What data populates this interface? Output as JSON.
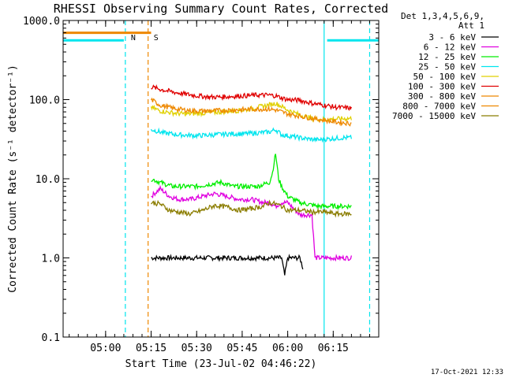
{
  "chart_data": {
    "type": "line",
    "title": "RHESSI Observing Summary Count Rates, Corrected",
    "xlabel": "Start Time (23-Jul-02 04:46:22)",
    "ylabel": "Corrected Count Rate (s⁻¹ detector⁻¹)",
    "yscale": "log",
    "ylim": [
      0.1,
      1000
    ],
    "xlim_minutes": [
      0,
      104
    ],
    "x_ticks": [
      {
        "minute": 14,
        "label": "05:00"
      },
      {
        "minute": 29,
        "label": "05:15"
      },
      {
        "minute": 44,
        "label": "05:30"
      },
      {
        "minute": 59,
        "label": "05:45"
      },
      {
        "minute": 74,
        "label": "06:00"
      },
      {
        "minute": 89,
        "label": "06:15"
      }
    ],
    "y_ticks": [
      {
        "value": 1000,
        "label": "1000.0"
      },
      {
        "value": 100,
        "label": "100.0"
      },
      {
        "value": 10,
        "label": "10.0"
      },
      {
        "value": 1,
        "label": "1.0"
      },
      {
        "value": 0.1,
        "label": "0.1"
      }
    ],
    "legend_header": [
      "Det 1,3,4,5,6,9,",
      "Att 1"
    ],
    "legend_position": "top-right, outside plot",
    "series": [
      {
        "name": "3 - 6 keV",
        "color": "#000000",
        "points": [
          [
            29,
            1
          ],
          [
            36,
            1
          ],
          [
            42,
            1
          ],
          [
            48,
            1
          ],
          [
            54,
            1
          ],
          [
            60,
            1
          ],
          [
            66,
            1
          ],
          [
            70,
            1
          ],
          [
            72,
            1
          ],
          [
            73,
            0.6
          ],
          [
            74,
            1
          ],
          [
            76,
            1
          ],
          [
            78,
            1
          ],
          [
            79,
            0.75
          ]
        ]
      },
      {
        "name": "6 - 12 keV",
        "color": "#e000e0",
        "points": [
          [
            29,
            6
          ],
          [
            32,
            7.5
          ],
          [
            35,
            6
          ],
          [
            38,
            5.5
          ],
          [
            42,
            5.5
          ],
          [
            46,
            6
          ],
          [
            50,
            6.5
          ],
          [
            54,
            6
          ],
          [
            58,
            5.5
          ],
          [
            62,
            5.5
          ],
          [
            66,
            5
          ],
          [
            68,
            5
          ],
          [
            70,
            4.5
          ],
          [
            72,
            5
          ],
          [
            74,
            5
          ],
          [
            78,
            3.5
          ],
          [
            82,
            3.5
          ],
          [
            83,
            1
          ],
          [
            95,
            1
          ]
        ]
      },
      {
        "name": "12 - 25 keV",
        "color": "#00ee00",
        "points": [
          [
            29,
            10
          ],
          [
            32,
            9
          ],
          [
            36,
            8
          ],
          [
            40,
            8
          ],
          [
            44,
            8
          ],
          [
            48,
            8.5
          ],
          [
            52,
            9
          ],
          [
            56,
            8
          ],
          [
            60,
            8
          ],
          [
            64,
            8
          ],
          [
            66,
            8.5
          ],
          [
            68,
            9
          ],
          [
            69,
            12
          ],
          [
            70,
            21
          ],
          [
            71,
            10
          ],
          [
            72,
            8
          ],
          [
            74,
            6
          ],
          [
            78,
            5
          ],
          [
            84,
            4.5
          ],
          [
            90,
            4.5
          ],
          [
            95,
            4.5
          ]
        ]
      },
      {
        "name": "25 - 50 keV",
        "color": "#00e5ee",
        "points": [
          [
            29,
            42
          ],
          [
            33,
            38
          ],
          [
            38,
            36
          ],
          [
            44,
            35
          ],
          [
            50,
            36
          ],
          [
            55,
            37
          ],
          [
            60,
            37
          ],
          [
            64,
            38
          ],
          [
            68,
            39
          ],
          [
            70,
            42
          ],
          [
            72,
            36
          ],
          [
            76,
            34
          ],
          [
            80,
            32
          ],
          [
            84,
            31
          ],
          [
            88,
            32
          ],
          [
            92,
            33
          ],
          [
            95,
            33
          ]
        ]
      },
      {
        "name": "50 - 100 keV",
        "color": "#e0d000",
        "points": [
          [
            29,
            80
          ],
          [
            32,
            72
          ],
          [
            36,
            68
          ],
          [
            40,
            66
          ],
          [
            44,
            67
          ],
          [
            48,
            68
          ],
          [
            52,
            70
          ],
          [
            56,
            72
          ],
          [
            60,
            74
          ],
          [
            64,
            80
          ],
          [
            68,
            86
          ],
          [
            70,
            90
          ],
          [
            72,
            82
          ],
          [
            74,
            74
          ],
          [
            78,
            64
          ],
          [
            82,
            58
          ],
          [
            86,
            56
          ],
          [
            90,
            57
          ],
          [
            95,
            58
          ]
        ]
      },
      {
        "name": "100 - 300 keV",
        "color": "#e00000",
        "points": [
          [
            29,
            145
          ],
          [
            32,
            135
          ],
          [
            36,
            125
          ],
          [
            40,
            118
          ],
          [
            44,
            112
          ],
          [
            48,
            108
          ],
          [
            52,
            108
          ],
          [
            56,
            110
          ],
          [
            60,
            112
          ],
          [
            64,
            114
          ],
          [
            68,
            114
          ],
          [
            70,
            112
          ],
          [
            72,
            105
          ],
          [
            74,
            100
          ],
          [
            78,
            98
          ],
          [
            82,
            90
          ],
          [
            86,
            85
          ],
          [
            90,
            80
          ],
          [
            95,
            78
          ]
        ]
      },
      {
        "name": "300 - 800 keV",
        "color": "#ee8800",
        "points": [
          [
            29,
            100
          ],
          [
            32,
            85
          ],
          [
            36,
            78
          ],
          [
            40,
            74
          ],
          [
            44,
            72
          ],
          [
            48,
            72
          ],
          [
            52,
            73
          ],
          [
            56,
            74
          ],
          [
            60,
            75
          ],
          [
            64,
            76
          ],
          [
            68,
            76
          ],
          [
            70,
            74
          ],
          [
            72,
            70
          ],
          [
            74,
            66
          ],
          [
            78,
            62
          ],
          [
            82,
            58
          ],
          [
            86,
            55
          ],
          [
            90,
            52
          ],
          [
            95,
            50
          ]
        ]
      },
      {
        "name": "800 - 7000 keV",
        "color": "#ee8800",
        "points": [
          [
            0,
            700
          ],
          [
            29,
            700
          ]
        ]
      },
      {
        "name": "7000 - 15000 keV",
        "color": "#8b7d00",
        "points": [
          [
            29,
            5
          ],
          [
            32,
            4.8
          ],
          [
            35,
            4
          ],
          [
            38,
            3.8
          ],
          [
            42,
            3.6
          ],
          [
            46,
            4
          ],
          [
            50,
            4.6
          ],
          [
            54,
            4.4
          ],
          [
            58,
            4
          ],
          [
            62,
            4.2
          ],
          [
            66,
            4.5
          ],
          [
            68,
            5
          ],
          [
            70,
            4.8
          ],
          [
            72,
            4.5
          ],
          [
            74,
            4
          ],
          [
            78,
            4
          ],
          [
            82,
            3.8
          ],
          [
            86,
            3.8
          ],
          [
            90,
            3.6
          ],
          [
            95,
            3.6
          ]
        ]
      },
      {
        "name": "",
        "color": "#00e5ee",
        "points": [
          [
            0,
            560
          ],
          [
            20,
            560
          ]
        ]
      },
      {
        "name": "",
        "color": "#00e5ee",
        "points": [
          [
            87,
            560
          ],
          [
            104,
            560
          ]
        ]
      }
    ],
    "vertical_markers": [
      {
        "minute": 20.5,
        "label": "N",
        "color": "#00e5ee",
        "style": "dashed"
      },
      {
        "minute": 28,
        "label": "S",
        "color": "#ee8800",
        "style": "dashed"
      },
      {
        "minute": 86,
        "label": "",
        "color": "#00e5ee",
        "style": "solid"
      },
      {
        "minute": 101,
        "label": "",
        "color": "#00e5ee",
        "style": "dashed"
      }
    ],
    "timestamp": "17-Oct-2021 12:33"
  }
}
